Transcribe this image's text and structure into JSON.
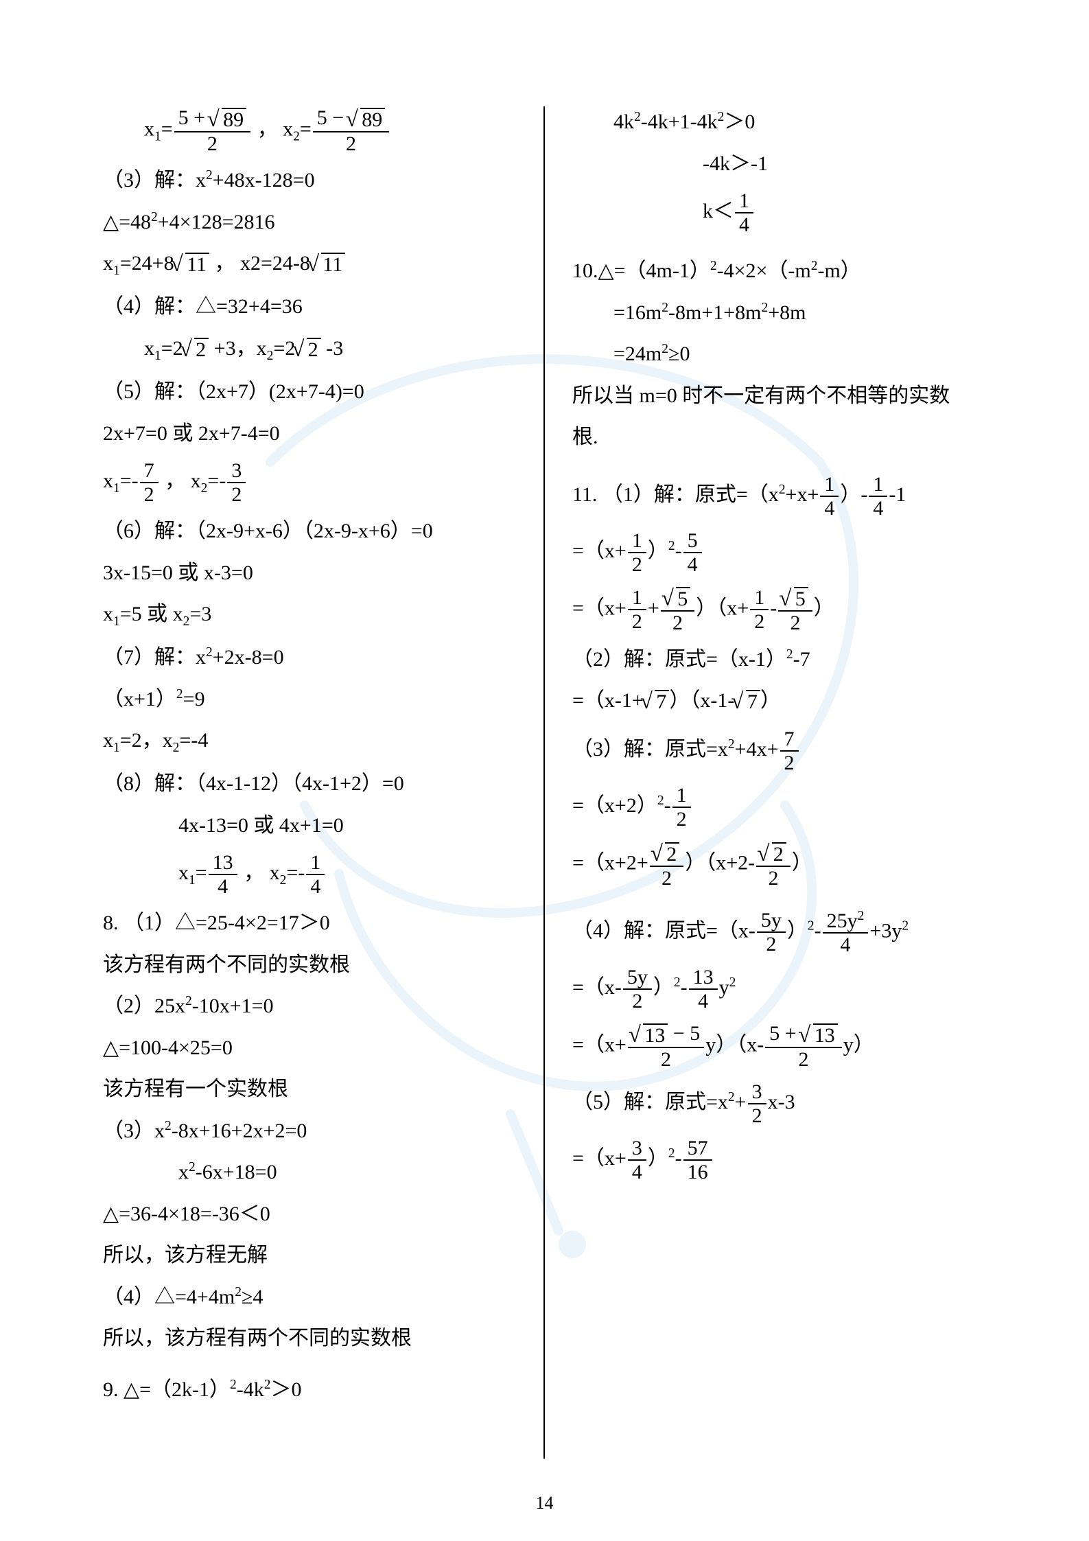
{
  "page_number": "14",
  "watermark": {
    "stroke_color": "#8fc6e8",
    "stroke_width": 14,
    "opacity": 0.18
  },
  "left_column": [
    {
      "id": "l1",
      "indent": 1,
      "parts": [
        "x",
        {
          "sub": "1"
        },
        "=",
        {
          "frac": {
            "num": [
              "5 + ",
              {
                "rad": "89"
              }
            ],
            "den": "2"
          }
        },
        " ，  x",
        {
          "sub": "2"
        },
        "=",
        {
          "frac": {
            "num": [
              "5 − ",
              {
                "rad": "89"
              }
            ],
            "den": "2"
          }
        }
      ]
    },
    {
      "id": "l2",
      "indent": 0,
      "parts": [
        "（3）解：x",
        {
          "sup": "2"
        },
        "+48x-128=0"
      ]
    },
    {
      "id": "l3",
      "indent": 0,
      "parts": [
        "△=48",
        {
          "sup": "2"
        },
        "+4×128=2816"
      ]
    },
    {
      "id": "l4",
      "indent": 0,
      "parts": [
        "x",
        {
          "sub": "1"
        },
        "=24+8",
        {
          "rad": "11"
        },
        " ， x2=24-8",
        {
          "rad": "11"
        }
      ]
    },
    {
      "id": "l5",
      "indent": 0,
      "parts": [
        "（4）解：△=32+4=36"
      ]
    },
    {
      "id": "l6",
      "indent": 1,
      "parts": [
        "x",
        {
          "sub": "1"
        },
        "=2",
        {
          "rad": "2"
        },
        " +3，x",
        {
          "sub": "2"
        },
        "=2",
        {
          "rad": "2"
        },
        " -3"
      ]
    },
    {
      "id": "l7",
      "indent": 0,
      "parts": [
        "（5）解：（2x+7）(2x+7-4)=0"
      ]
    },
    {
      "id": "l8",
      "indent": 0,
      "parts": [
        "2x+7=0 或 2x+7-4=0"
      ]
    },
    {
      "id": "l9",
      "indent": 0,
      "parts": [
        "x",
        {
          "sub": "1"
        },
        "=-",
        {
          "frac": {
            "num": "7",
            "den": "2"
          }
        },
        " ， x",
        {
          "sub": "2"
        },
        "=-",
        {
          "frac": {
            "num": "3",
            "den": "2"
          }
        }
      ]
    },
    {
      "id": "l10",
      "indent": 0,
      "parts": [
        "（6）解：（2x-9+x-6）（2x-9-x+6）=0"
      ]
    },
    {
      "id": "l11",
      "indent": 0,
      "parts": [
        "3x-15=0 或 x-3=0"
      ]
    },
    {
      "id": "l12",
      "indent": 0,
      "parts": [
        "x",
        {
          "sub": "1"
        },
        "=5 或 x",
        {
          "sub": "2"
        },
        "=3"
      ]
    },
    {
      "id": "l13",
      "indent": 0,
      "parts": [
        "（7）解：x",
        {
          "sup": "2"
        },
        "+2x-8=0"
      ]
    },
    {
      "id": "l14",
      "indent": 0,
      "parts": [
        "（x+1）",
        {
          "sup": "2"
        },
        "=9"
      ]
    },
    {
      "id": "l15",
      "indent": 0,
      "parts": [
        "x",
        {
          "sub": "1"
        },
        "=2，x",
        {
          "sub": "2"
        },
        "=-4"
      ]
    },
    {
      "id": "l16",
      "indent": 0,
      "parts": [
        "（8）解：（4x-1-12）（4x-1+2）=0"
      ]
    },
    {
      "id": "l17",
      "indent": 2,
      "parts": [
        "4x-13=0 或 4x+1=0"
      ]
    },
    {
      "id": "l18",
      "indent": 2,
      "parts": [
        "x",
        {
          "sub": "1"
        },
        "=",
        {
          "frac": {
            "num": "13",
            "den": "4"
          }
        },
        " ， x",
        {
          "sub": "2"
        },
        "=-",
        {
          "frac": {
            "num": "1",
            "den": "4"
          }
        }
      ]
    },
    {
      "id": "l19",
      "indent": 0,
      "parts": [
        "8.  （1）△=25-4×2=17＞0"
      ]
    },
    {
      "id": "l20",
      "indent": 0,
      "parts": [
        "该方程有两个不同的实数根"
      ]
    },
    {
      "id": "l21",
      "indent": 0,
      "parts": [
        "（2）25x",
        {
          "sup": "2"
        },
        "-10x+1=0"
      ]
    },
    {
      "id": "l22",
      "indent": 0,
      "parts": [
        "△=100-4×25=0"
      ]
    },
    {
      "id": "l23",
      "indent": 0,
      "parts": [
        "该方程有一个实数根"
      ]
    },
    {
      "id": "l24",
      "indent": 0,
      "parts": [
        "（3）x",
        {
          "sup": "2"
        },
        "-8x+16+2x+2=0"
      ]
    },
    {
      "id": "l25",
      "indent": 2,
      "parts": [
        "x",
        {
          "sup": "2"
        },
        "-6x+18=0"
      ]
    },
    {
      "id": "l26",
      "indent": 0,
      "parts": [
        "△=36-4×18=-36＜0"
      ]
    },
    {
      "id": "l27",
      "indent": 0,
      "parts": [
        "所以，该方程无解"
      ]
    },
    {
      "id": "l28",
      "indent": 0,
      "parts": [
        "（4）△=4+4m",
        {
          "sup": "2"
        },
        "≥4"
      ]
    },
    {
      "id": "l29",
      "indent": 0,
      "parts": [
        "所以，该方程有两个不同的实数根"
      ]
    },
    {
      "id": "l30",
      "indent": 0,
      "parts": [
        " "
      ]
    },
    {
      "id": "l31",
      "indent": 0,
      "parts": [
        "9.  △=（2k-1）",
        {
          "sup": "2"
        },
        "-4k",
        {
          "sup": "2"
        },
        "＞0"
      ]
    }
  ],
  "right_column": [
    {
      "id": "r1",
      "indent": 1,
      "parts": [
        "4k",
        {
          "sup": "2"
        },
        "-4k+1-4k",
        {
          "sup": "2"
        },
        "＞0"
      ]
    },
    {
      "id": "r2",
      "indent": "center-right",
      "parts": [
        "-4k＞-1"
      ]
    },
    {
      "id": "r3",
      "indent": "center-right",
      "parts": [
        "k＜",
        {
          "frac": {
            "num": "1",
            "den": "4"
          }
        }
      ]
    },
    {
      "id": "r3b",
      "indent": 0,
      "parts": [
        " "
      ]
    },
    {
      "id": "r4",
      "indent": 0,
      "parts": [
        "10.△=（4m-1）",
        {
          "sup": "2"
        },
        "-4×2×（-m",
        {
          "sup": "2"
        },
        "-m）"
      ]
    },
    {
      "id": "r5",
      "indent": 1,
      "parts": [
        "=16m",
        {
          "sup": "2"
        },
        "-8m+1+8m",
        {
          "sup": "2"
        },
        "+8m"
      ]
    },
    {
      "id": "r6",
      "indent": 1,
      "parts": [
        "=24m",
        {
          "sup": "2"
        },
        "≥0"
      ]
    },
    {
      "id": "r7",
      "indent": 0,
      "parts": [
        "所以当 m=0 时不一定有两个不相等的实数"
      ]
    },
    {
      "id": "r8",
      "indent": 0,
      "parts": [
        "根."
      ]
    },
    {
      "id": "r8b",
      "indent": 0,
      "parts": [
        " "
      ]
    },
    {
      "id": "r9",
      "indent": 0,
      "parts": [
        "11. （1）解：原式=（x",
        {
          "sup": "2"
        },
        "+x+",
        {
          "frac": {
            "num": "1",
            "den": "4"
          }
        },
        "）-",
        {
          "frac": {
            "num": "1",
            "den": "4"
          }
        },
        "-1"
      ]
    },
    {
      "id": "r10",
      "indent": 0,
      "parts": [
        "=（x+",
        {
          "frac": {
            "num": "1",
            "den": "2"
          }
        },
        "）",
        {
          "sup": "2"
        },
        "-",
        {
          "frac": {
            "num": "5",
            "den": "4"
          }
        }
      ]
    },
    {
      "id": "r11",
      "indent": 0,
      "parts": [
        "=（x+",
        {
          "frac": {
            "num": "1",
            "den": "2"
          }
        },
        "+",
        {
          "frac": {
            "num": [
              {
                "rad": "5"
              }
            ],
            "den": "2"
          }
        },
        "）（x+",
        {
          "frac": {
            "num": "1",
            "den": "2"
          }
        },
        "-",
        {
          "frac": {
            "num": [
              {
                "rad": "5"
              }
            ],
            "den": "2"
          }
        },
        "）"
      ]
    },
    {
      "id": "r12",
      "indent": 0,
      "parts": [
        "（2）解：原式=（x-1）",
        {
          "sup": "2"
        },
        "-7"
      ]
    },
    {
      "id": "r13",
      "indent": 0,
      "parts": [
        "=（x-1+",
        {
          "rad": "7"
        },
        "）（x-1-",
        {
          "rad": "7"
        },
        "）"
      ]
    },
    {
      "id": "r14",
      "indent": 0,
      "parts": [
        "（3）解：原式=x",
        {
          "sup": "2"
        },
        "+4x+",
        {
          "frac": {
            "num": "7",
            "den": "2"
          }
        }
      ]
    },
    {
      "id": "r15",
      "indent": 0,
      "parts": [
        "=（x+2）",
        {
          "sup": "2"
        },
        "-",
        {
          "frac": {
            "num": "1",
            "den": "2"
          }
        }
      ]
    },
    {
      "id": "r16",
      "indent": 0,
      "parts": [
        "=（x+2+",
        {
          "frac": {
            "num": [
              {
                "rad": "2"
              }
            ],
            "den": "2"
          }
        },
        "）（x+2-",
        {
          "frac": {
            "num": [
              {
                "rad": "2"
              }
            ],
            "den": "2"
          }
        },
        "）"
      ]
    },
    {
      "id": "r16b",
      "indent": 0,
      "parts": [
        " "
      ]
    },
    {
      "id": "r17",
      "indent": 0,
      "parts": [
        "（4）解：原式=（x-",
        {
          "frac": {
            "num": "5y",
            "den": "2"
          }
        },
        "）",
        {
          "sup": "2"
        },
        "-",
        {
          "frac": {
            "num": [
              "25y",
              {
                "sup": "2"
              }
            ],
            "den": "4"
          }
        },
        "+3y",
        {
          "sup": "2"
        }
      ]
    },
    {
      "id": "r18",
      "indent": 0,
      "parts": [
        "=（x-",
        {
          "frac": {
            "num": "5y",
            "den": "2"
          }
        },
        "）",
        {
          "sup": "2"
        },
        "-",
        {
          "frac": {
            "num": "13",
            "den": "4"
          }
        },
        "y",
        {
          "sup": "2"
        }
      ]
    },
    {
      "id": "r19",
      "indent": 0,
      "parts": [
        "=（x+",
        {
          "frac": {
            "num": [
              {
                "rad": "13"
              },
              " − 5"
            ],
            "den": "2"
          }
        },
        "y）（x-",
        {
          "frac": {
            "num": [
              "5 + ",
              {
                "rad": "13"
              }
            ],
            "den": "2"
          }
        },
        "y）"
      ]
    },
    {
      "id": "r20",
      "indent": 0,
      "parts": [
        "（5）解：原式=x",
        {
          "sup": "2"
        },
        "+",
        {
          "frac": {
            "num": "3",
            "den": "2"
          }
        },
        "x-3"
      ]
    },
    {
      "id": "r21",
      "indent": 0,
      "parts": [
        "=（x+",
        {
          "frac": {
            "num": "3",
            "den": "4"
          }
        },
        "）",
        {
          "sup": "2"
        },
        "-",
        {
          "frac": {
            "num": "57",
            "den": "16"
          }
        }
      ]
    }
  ]
}
